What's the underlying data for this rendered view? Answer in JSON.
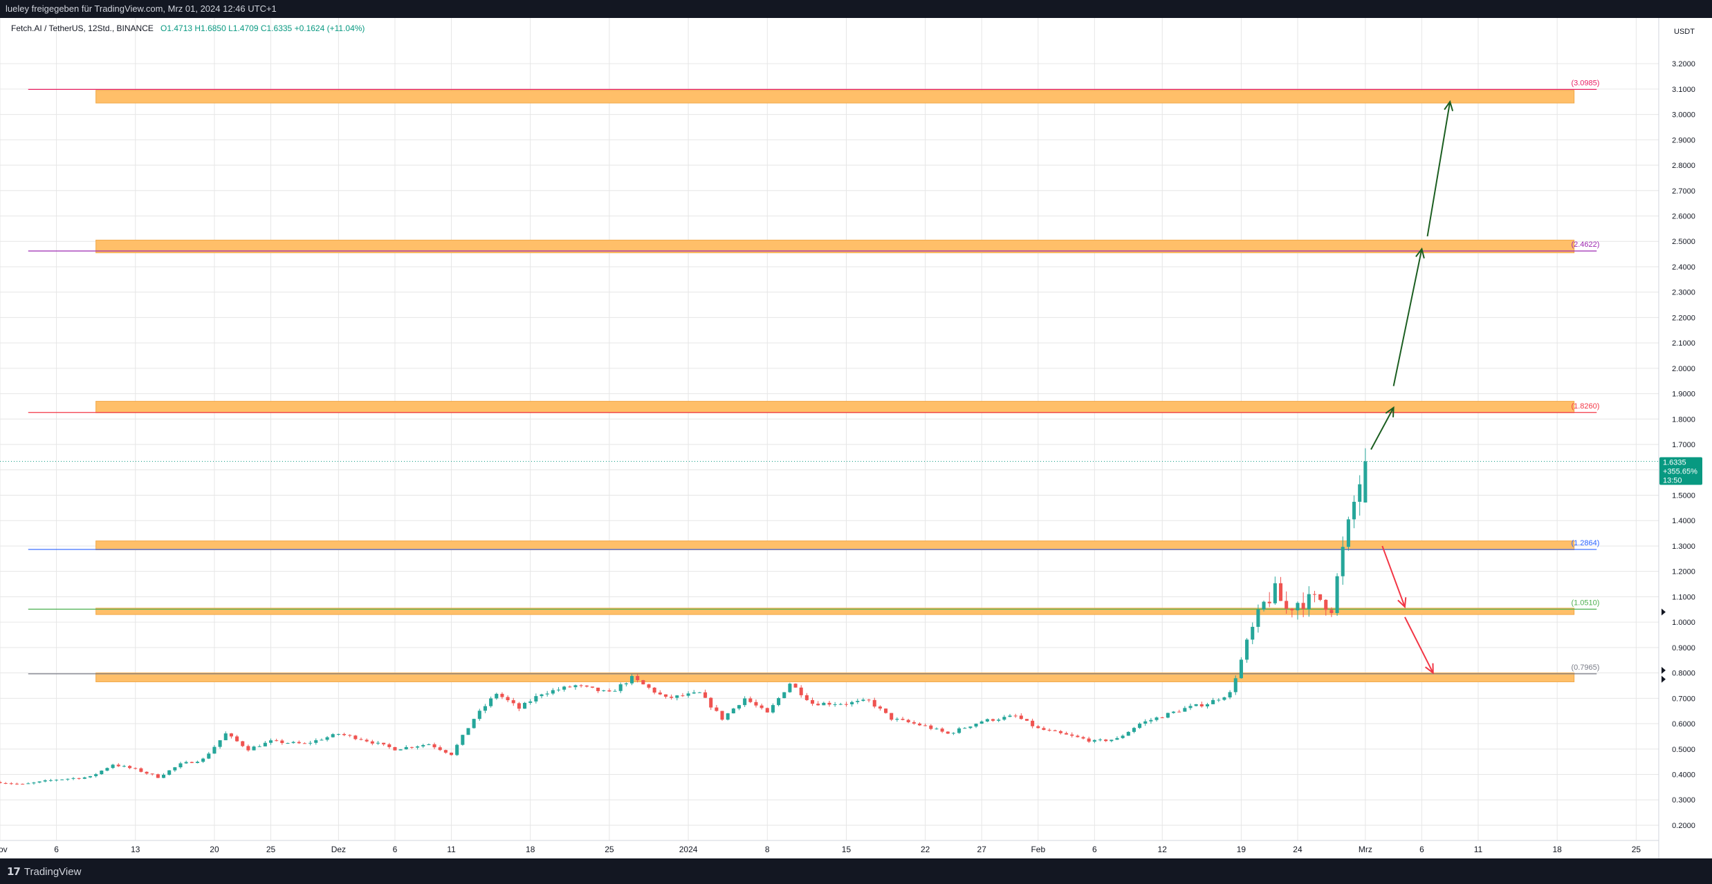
{
  "header": {
    "shared_by": "lueley freigegeben für TradingView.com, Mrz 01, 2024 12:46 UTC+1"
  },
  "footer": {
    "brand": "TradingView",
    "brand_mark": "17"
  },
  "chart_data": {
    "type": "candlestick",
    "symbol_line": {
      "title": "Fetch.AI / TetherUS, 12Std., BINANCE",
      "open": "O1.4713",
      "high": "H1.6850",
      "low": "L1.4709",
      "close": "C1.6335",
      "change": "+0.1624 (+11.04%)"
    },
    "currency": "USDT",
    "y_axis": {
      "range": [
        0.14,
        3.38
      ],
      "ticks": [
        "0.2000",
        "0.3000",
        "0.4000",
        "0.5000",
        "0.6000",
        "0.7000",
        "0.8000",
        "0.9000",
        "1.0000",
        "1.1000",
        "1.2000",
        "1.3000",
        "1.4000",
        "1.5000",
        "1.6000",
        "1.7000",
        "1.8000",
        "1.9000",
        "2.0000",
        "2.1000",
        "2.2000",
        "2.3000",
        "2.4000",
        "2.5000",
        "2.6000",
        "2.7000",
        "2.8000",
        "2.9000",
        "3.0000",
        "3.1000",
        "3.2000"
      ]
    },
    "x_axis": {
      "range": [
        "2023-11-01T00:00",
        "2024-03-27T00:00"
      ],
      "ticks": [
        {
          "date": "2023-11-01",
          "label": "Nov"
        },
        {
          "date": "2023-11-06",
          "label": "6"
        },
        {
          "date": "2023-11-13",
          "label": "13"
        },
        {
          "date": "2023-11-20",
          "label": "20"
        },
        {
          "date": "2023-11-25",
          "label": "25"
        },
        {
          "date": "2023-12-01",
          "label": "Dez"
        },
        {
          "date": "2023-12-06",
          "label": "6"
        },
        {
          "date": "2023-12-11",
          "label": "11"
        },
        {
          "date": "2023-12-18",
          "label": "18"
        },
        {
          "date": "2023-12-25",
          "label": "25"
        },
        {
          "date": "2024-01-01",
          "label": "2024"
        },
        {
          "date": "2024-01-08",
          "label": "8"
        },
        {
          "date": "2024-01-15",
          "label": "15"
        },
        {
          "date": "2024-01-22",
          "label": "22"
        },
        {
          "date": "2024-01-27",
          "label": "27"
        },
        {
          "date": "2024-02-01",
          "label": "Feb"
        },
        {
          "date": "2024-02-06",
          "label": "6"
        },
        {
          "date": "2024-02-12",
          "label": "12"
        },
        {
          "date": "2024-02-19",
          "label": "19"
        },
        {
          "date": "2024-02-24",
          "label": "24"
        },
        {
          "date": "2024-03-01",
          "label": "Mrz"
        },
        {
          "date": "2024-03-06",
          "label": "6"
        },
        {
          "date": "2024-03-11",
          "label": "11"
        },
        {
          "date": "2024-03-18",
          "label": "18"
        },
        {
          "date": "2024-03-25",
          "label": "25"
        }
      ]
    },
    "candle_interval_hours": 12,
    "daily_close_path": [
      [
        "2023-11-01",
        0.37
      ],
      [
        "2023-11-03",
        0.36
      ],
      [
        "2023-11-06",
        0.38
      ],
      [
        "2023-11-09",
        0.39
      ],
      [
        "2023-11-11",
        0.44
      ],
      [
        "2023-11-13",
        0.42
      ],
      [
        "2023-11-15",
        0.39
      ],
      [
        "2023-11-17",
        0.44
      ],
      [
        "2023-11-19",
        0.46
      ],
      [
        "2023-11-21",
        0.56
      ],
      [
        "2023-11-23",
        0.5
      ],
      [
        "2023-11-25",
        0.53
      ],
      [
        "2023-11-28",
        0.52
      ],
      [
        "2023-12-01",
        0.56
      ],
      [
        "2023-12-03",
        0.54
      ],
      [
        "2023-12-06",
        0.5
      ],
      [
        "2023-12-09",
        0.52
      ],
      [
        "2023-12-11",
        0.48
      ],
      [
        "2023-12-13",
        0.62
      ],
      [
        "2023-12-15",
        0.72
      ],
      [
        "2023-12-17",
        0.66
      ],
      [
        "2023-12-19",
        0.72
      ],
      [
        "2023-12-22",
        0.75
      ],
      [
        "2023-12-25",
        0.72
      ],
      [
        "2023-12-27",
        0.78
      ],
      [
        "2023-12-30",
        0.7
      ],
      [
        "2024-01-02",
        0.72
      ],
      [
        "2024-01-04",
        0.62
      ],
      [
        "2024-01-06",
        0.7
      ],
      [
        "2024-01-08",
        0.64
      ],
      [
        "2024-01-10",
        0.76
      ],
      [
        "2024-01-12",
        0.68
      ],
      [
        "2024-01-15",
        0.68
      ],
      [
        "2024-01-17",
        0.69
      ],
      [
        "2024-01-19",
        0.62
      ],
      [
        "2024-01-22",
        0.59
      ],
      [
        "2024-01-24",
        0.56
      ],
      [
        "2024-01-27",
        0.61
      ],
      [
        "2024-01-30",
        0.63
      ],
      [
        "2024-02-01",
        0.58
      ],
      [
        "2024-02-03",
        0.56
      ],
      [
        "2024-02-06",
        0.53
      ],
      [
        "2024-02-08",
        0.54
      ],
      [
        "2024-02-10",
        0.6
      ],
      [
        "2024-02-12",
        0.63
      ],
      [
        "2024-02-14",
        0.66
      ],
      [
        "2024-02-16",
        0.68
      ],
      [
        "2024-02-18",
        0.72
      ],
      [
        "2024-02-19",
        0.85
      ],
      [
        "2024-02-20",
        0.97
      ],
      [
        "2024-02-21",
        1.07
      ],
      [
        "2024-02-22",
        1.12
      ],
      [
        "2024-02-23",
        1.05
      ],
      [
        "2024-02-24",
        1.08
      ],
      [
        "2024-02-26",
        1.09
      ],
      [
        "2024-02-27",
        1.06
      ],
      [
        "2024-02-28",
        1.28
      ],
      [
        "2024-02-29",
        1.47
      ],
      [
        "2024-03-01",
        1.6335
      ]
    ],
    "last_price": {
      "value": 1.6335,
      "label": "1.6335",
      "change": "+355.65%",
      "countdown": "13:50"
    },
    "zones": [
      {
        "low": 3.045,
        "high": 3.095
      },
      {
        "low": 2.455,
        "high": 2.505
      },
      {
        "low": 1.825,
        "high": 1.87
      },
      {
        "low": 1.285,
        "high": 1.32
      },
      {
        "low": 1.03,
        "high": 1.055
      },
      {
        "low": 0.765,
        "high": 0.8
      }
    ],
    "levels": [
      {
        "value": 3.0985,
        "label": "(3.0985)",
        "color": "#e91e63"
      },
      {
        "value": 2.4622,
        "label": "(2.4622)",
        "color": "#9c27b0"
      },
      {
        "value": 1.826,
        "label": "(1.8260)",
        "color": "#f23645"
      },
      {
        "value": 1.2864,
        "label": "(1.2864)",
        "color": "#2962ff"
      },
      {
        "value": 1.051,
        "label": "(1.0510)",
        "color": "#4caf50"
      },
      {
        "value": 0.7965,
        "label": "(0.7965)",
        "color": "#787b86"
      }
    ],
    "arrows": [
      {
        "from": [
          "2024-03-01T12:00",
          1.68
        ],
        "to": [
          "2024-03-03T12:00",
          1.845
        ],
        "color": "#1b5e20"
      },
      {
        "from": [
          "2024-03-03T12:00",
          1.93
        ],
        "to": [
          "2024-03-06T00:00",
          2.47
        ],
        "color": "#1b5e20"
      },
      {
        "from": [
          "2024-03-06T12:00",
          2.52
        ],
        "to": [
          "2024-03-08T12:00",
          3.05
        ],
        "color": "#1b5e20"
      },
      {
        "from": [
          "2024-03-02T12:00",
          1.3
        ],
        "to": [
          "2024-03-04T12:00",
          1.06
        ],
        "color": "#f23645"
      },
      {
        "from": [
          "2024-03-04T12:00",
          1.02
        ],
        "to": [
          "2024-03-07T00:00",
          0.8
        ],
        "color": "#f23645"
      }
    ],
    "colors": {
      "up": "#26a69a",
      "down": "#ef5350",
      "zone": "#ffbf69",
      "grid": "#e6e6e6"
    },
    "grid": true
  }
}
